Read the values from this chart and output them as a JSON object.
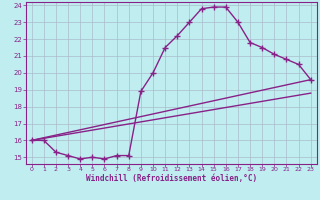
{
  "xlabel": "Windchill (Refroidissement éolien,°C)",
  "bg_color": "#c0eef0",
  "line_color": "#882288",
  "grid_color": "#aabbcc",
  "xlim": [
    -0.5,
    23.5
  ],
  "ylim": [
    14.6,
    24.2
  ],
  "xticks": [
    0,
    1,
    2,
    3,
    4,
    5,
    6,
    7,
    8,
    9,
    10,
    11,
    12,
    13,
    14,
    15,
    16,
    17,
    18,
    19,
    20,
    21,
    22,
    23
  ],
  "yticks": [
    15,
    16,
    17,
    18,
    19,
    20,
    21,
    22,
    23,
    24
  ],
  "line1_x": [
    0,
    1,
    2,
    3,
    4,
    5,
    6,
    7,
    8,
    9,
    10,
    11,
    12,
    13,
    14,
    15,
    16,
    17,
    18,
    19,
    20,
    21,
    22,
    23
  ],
  "line1_y": [
    16.0,
    16.0,
    15.3,
    15.1,
    14.9,
    15.0,
    14.9,
    15.1,
    15.1,
    18.9,
    20.0,
    21.5,
    22.2,
    23.0,
    23.8,
    23.9,
    23.9,
    23.0,
    21.8,
    21.5,
    21.1,
    20.8,
    20.5,
    19.6
  ],
  "line2_x": [
    0,
    23
  ],
  "line2_y": [
    16.0,
    19.6
  ],
  "line3_x": [
    0,
    23
  ],
  "line3_y": [
    16.0,
    18.8
  ],
  "marker": "+",
  "marker_size": 5,
  "line_width": 1.0
}
